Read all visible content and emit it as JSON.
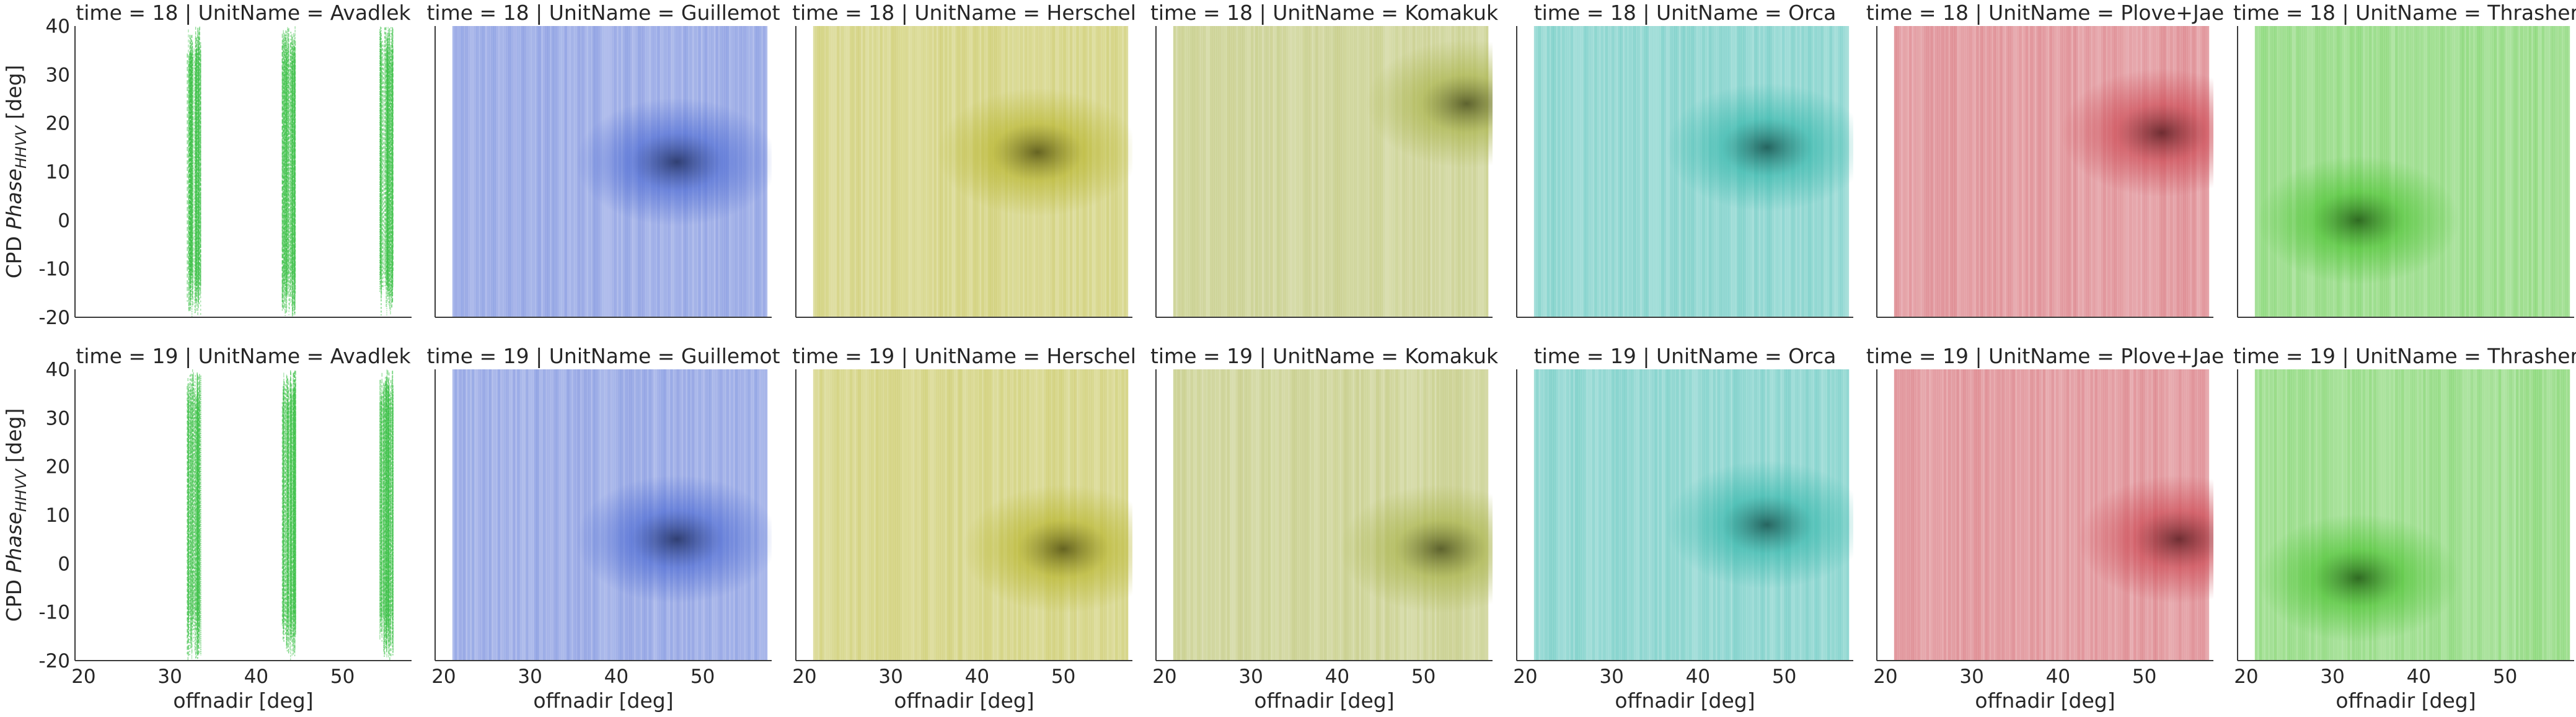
{
  "chart_data": {
    "type": "heatmap",
    "description_layout": "facet-grid",
    "xlabel": "offnadir [deg]",
    "ylabel_prefix": "CPD ",
    "ylabel_italic": "Phase",
    "ylabel_sub": "HHVV",
    "ylabel_suffix": " [deg]",
    "xlim": [
      19,
      58
    ],
    "ylim": [
      -20,
      40
    ],
    "xticks": [
      20,
      30,
      40,
      50
    ],
    "yticks": [
      -20,
      -10,
      0,
      10,
      20,
      30,
      40
    ],
    "row_var": "time",
    "col_var": "UnitName",
    "rows": [
      18,
      19
    ],
    "cols": [
      {
        "name": "Avadlek",
        "color": "#3fc14a"
      },
      {
        "name": "Guillemot",
        "color": "#3f5fd0"
      },
      {
        "name": "Herschel",
        "color": "#b3b01f"
      },
      {
        "name": "Komakuk",
        "color": "#a2ad3c"
      },
      {
        "name": "Orca",
        "color": "#27b2a6"
      },
      {
        "name": "Plove+Jae",
        "color": "#c83a45"
      },
      {
        "name": "Thrasher",
        "color": "#3fbf22"
      }
    ],
    "panels": [
      {
        "time": 18,
        "unit": "Avadlek",
        "x_clusters": [
          32.8,
          43.8,
          55.1
        ],
        "x_range": [
          32.5,
          55.5
        ],
        "y_center": 10
      },
      {
        "time": 18,
        "unit": "Guillemot",
        "x_range": [
          21,
          57.5
        ],
        "peak": [
          47,
          12
        ]
      },
      {
        "time": 18,
        "unit": "Herschel",
        "x_range": [
          21,
          57.5
        ],
        "peak": [
          47,
          14
        ]
      },
      {
        "time": 18,
        "unit": "Komakuk",
        "x_range": [
          21,
          57.5
        ],
        "peak": [
          55,
          24
        ]
      },
      {
        "time": 18,
        "unit": "Orca",
        "x_range": [
          21,
          57.5
        ],
        "peak": [
          48,
          15
        ]
      },
      {
        "time": 18,
        "unit": "Plove+Jae",
        "x_range": [
          21,
          57.5
        ],
        "peak": [
          52,
          18
        ]
      },
      {
        "time": 18,
        "unit": "Thrasher",
        "x_range": [
          21,
          57.5
        ],
        "peak": [
          33,
          0
        ]
      },
      {
        "time": 19,
        "unit": "Avadlek",
        "x_clusters": [
          32.8,
          43.8,
          55.1
        ],
        "x_range": [
          32.5,
          55.5
        ],
        "y_center": 5
      },
      {
        "time": 19,
        "unit": "Guillemot",
        "x_range": [
          21,
          57.5
        ],
        "peak": [
          47,
          5
        ]
      },
      {
        "time": 19,
        "unit": "Herschel",
        "x_range": [
          21,
          57.5
        ],
        "peak": [
          50,
          3
        ]
      },
      {
        "time": 19,
        "unit": "Komakuk",
        "x_range": [
          21,
          57.5
        ],
        "peak": [
          52,
          3
        ]
      },
      {
        "time": 19,
        "unit": "Orca",
        "x_range": [
          21,
          57.5
        ],
        "peak": [
          48,
          8
        ]
      },
      {
        "time": 19,
        "unit": "Plove+Jae",
        "x_range": [
          21,
          57.5
        ],
        "peak": [
          54,
          5
        ]
      },
      {
        "time": 19,
        "unit": "Thrasher",
        "x_range": [
          21,
          57.5
        ],
        "peak": [
          33,
          -3
        ]
      }
    ],
    "grid": false
  }
}
